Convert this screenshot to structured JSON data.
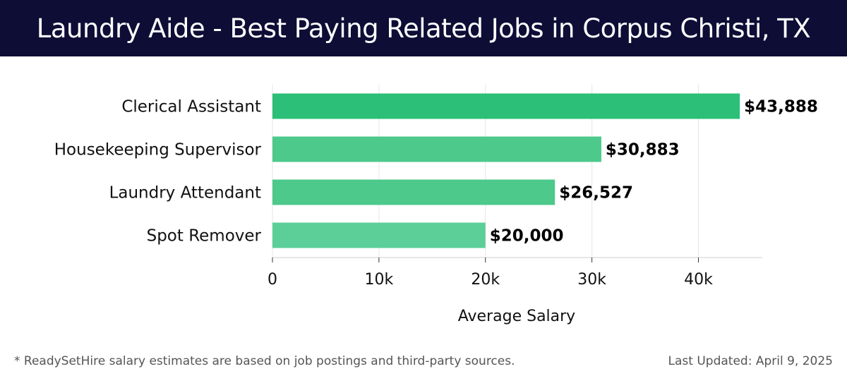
{
  "header": {
    "title": "Laundry Aide - Best Paying Related Jobs in Corpus Christi, TX"
  },
  "chart_data": {
    "type": "bar",
    "orientation": "horizontal",
    "categories": [
      "Clerical Assistant",
      "Housekeeping Supervisor",
      "Laundry Attendant",
      "Spot Remover"
    ],
    "values": [
      43888,
      30883,
      26527,
      20000
    ],
    "value_labels": [
      "$43,888",
      "$30,883",
      "$26,527",
      "$20,000"
    ],
    "xlabel": "Average Salary",
    "xlim": [
      0,
      46000
    ],
    "xticks": [
      0,
      10000,
      20000,
      30000,
      40000
    ],
    "xtick_labels": [
      "0",
      "10k",
      "20k",
      "30k",
      "40k"
    ],
    "grid": true,
    "colors": [
      "#2bbf78",
      "#4cc98b",
      "#4cc98b",
      "#5ccf98"
    ]
  },
  "footer": {
    "note": "* ReadySetHire salary estimates are based on job postings and third-party sources.",
    "updated": "Last Updated: April 9, 2025"
  }
}
